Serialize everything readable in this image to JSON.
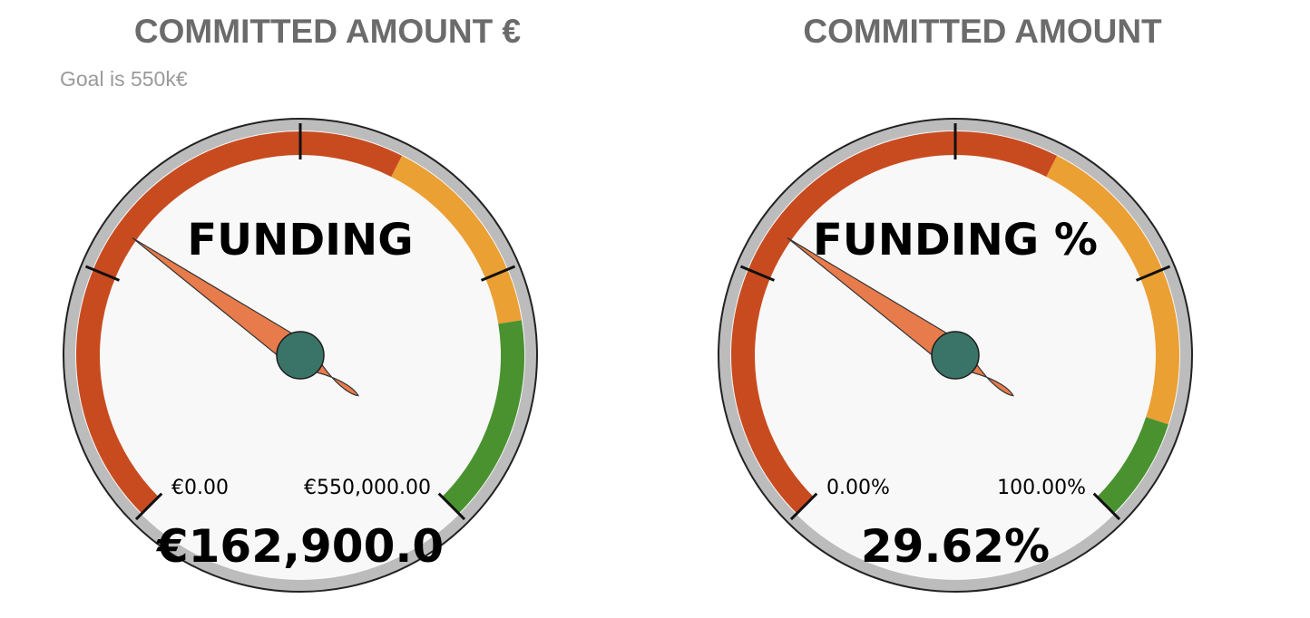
{
  "chart_data": [
    {
      "type": "gauge",
      "title": "COMMITTED AMOUNT €",
      "subtitle": "Goal is 550k€",
      "gauge_label": "FUNDING",
      "value": 162900,
      "value_label": "€162,900.0",
      "min": 0,
      "max": 550000,
      "min_label": "€0.00",
      "max_label": "€550,000.00",
      "bands": [
        {
          "from": 0,
          "to": 0.6,
          "color": "#c84b20"
        },
        {
          "from": 0.6,
          "to": 0.8,
          "color": "#eba034"
        },
        {
          "from": 0.8,
          "to": 1.0,
          "color": "#4a9230"
        }
      ],
      "ticks": 5
    },
    {
      "type": "gauge",
      "title": "COMMITTED AMOUNT",
      "subtitle": "",
      "gauge_label": "FUNDING %",
      "value": 29.62,
      "value_label": "29.62%",
      "min": 0,
      "max": 100,
      "min_label": "0.00%",
      "max_label": "100.00%",
      "bands": [
        {
          "from": 0,
          "to": 0.6,
          "color": "#c84b20"
        },
        {
          "from": 0.6,
          "to": 0.9,
          "color": "#eba034"
        },
        {
          "from": 0.9,
          "to": 1.0,
          "color": "#4a9230"
        }
      ],
      "ticks": 5
    }
  ],
  "colors": {
    "bezel": "#bcbcbc",
    "face": "#f8f8f8",
    "needle": "#e87b4b",
    "hub": "#3a7468"
  }
}
